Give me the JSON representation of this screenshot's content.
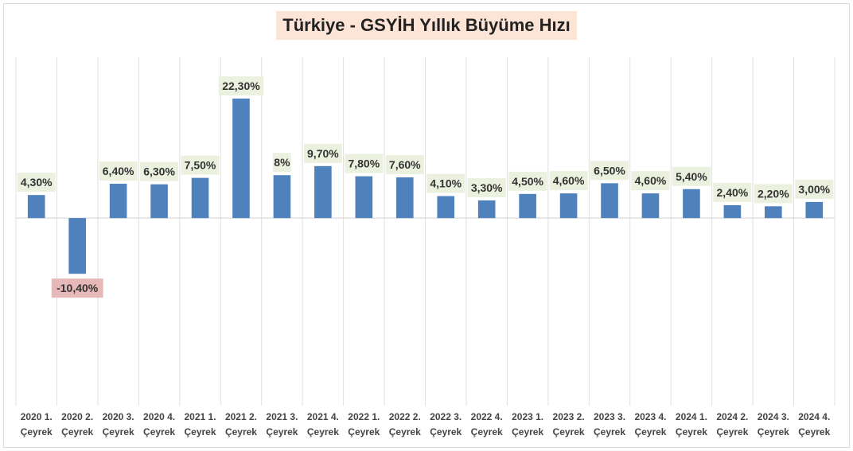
{
  "chart_data": {
    "type": "bar",
    "title": "Türkiye - GSYİH Yıllık Büyüme Hızı",
    "categories": [
      [
        "2020 1.",
        "Çeyrek"
      ],
      [
        "2020 2.",
        "Çeyrek"
      ],
      [
        "2020 3.",
        "Çeyrek"
      ],
      [
        "2020 4.",
        "Çeyrek"
      ],
      [
        "2021 1.",
        "Çeyrek"
      ],
      [
        "2021 2.",
        "Çeyrek"
      ],
      [
        "2021 3.",
        "Çeyrek"
      ],
      [
        "2021 4.",
        "Çeyrek"
      ],
      [
        "2022 1.",
        "Çeyrek"
      ],
      [
        "2022 2.",
        "Çeyrek"
      ],
      [
        "2022 3.",
        "Çeyrek"
      ],
      [
        "2022 4.",
        "Çeyrek"
      ],
      [
        "2023 1.",
        "Çeyrek"
      ],
      [
        "2023 2.",
        "Çeyrek"
      ],
      [
        "2023 3.",
        "Çeyrek"
      ],
      [
        "2023 4.",
        "Çeyrek"
      ],
      [
        "2024 1.",
        "Çeyrek"
      ],
      [
        "2024 2.",
        "Çeyrek"
      ],
      [
        "2024 3.",
        "Çeyrek"
      ],
      [
        "2024 4.",
        "Çeyrek"
      ]
    ],
    "values": [
      4.3,
      -10.4,
      6.4,
      6.3,
      7.5,
      22.3,
      8,
      9.7,
      7.8,
      7.6,
      4.1,
      3.3,
      4.5,
      4.6,
      6.5,
      4.6,
      5.4,
      2.4,
      2.2,
      3.0
    ],
    "data_labels": [
      "4,30%",
      "-10,40%",
      "6,40%",
      "6,30%",
      "7,50%",
      "22,30%",
      "8%",
      "9,70%",
      "7,80%",
      "7,60%",
      "4,10%",
      "3,30%",
      "4,50%",
      "4,60%",
      "6,50%",
      "4,60%",
      "5,40%",
      "2,40%",
      "2,20%",
      "3,00%"
    ],
    "ylim": [
      -35,
      30
    ],
    "grid": "vertical",
    "colors": {
      "bar": "#4f81bd",
      "positive_label_bg": "#ebf1de",
      "negative_label_bg": "#e6b8b7",
      "title_bg": "#fce4d6",
      "grid": "#e0e0e0",
      "axis": "#d9d9d9"
    }
  }
}
